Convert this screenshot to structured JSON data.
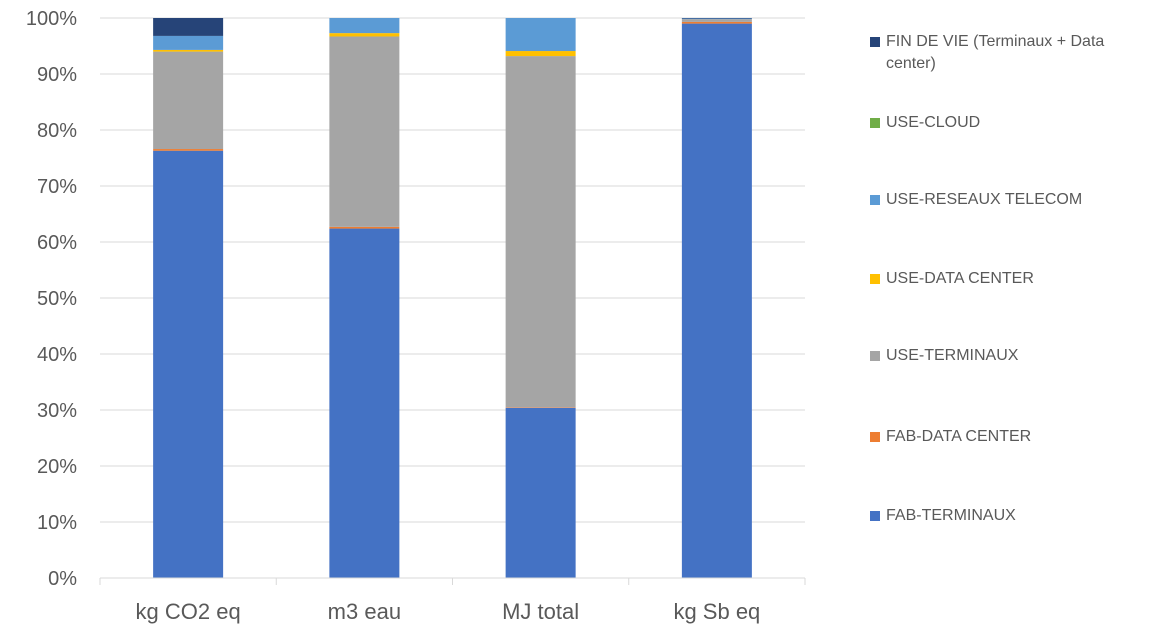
{
  "chart_data": {
    "type": "bar",
    "stacked": "percent",
    "categories": [
      "kg CO2 eq",
      "m3 eau",
      "MJ total",
      "kg Sb eq"
    ],
    "y_ticks": [
      "0%",
      "10%",
      "20%",
      "30%",
      "40%",
      "50%",
      "60%",
      "70%",
      "80%",
      "90%",
      "100%"
    ],
    "ylim": [
      0,
      100
    ],
    "grid": true,
    "legend_position": "right",
    "series": [
      {
        "name": "FAB-TERMINAUX",
        "color": "#4472C4",
        "values": [
          76.3,
          62.4,
          30.4,
          99.0
        ]
      },
      {
        "name": "FAB-DATA CENTER",
        "color": "#ED7D31",
        "values": [
          0.3,
          0.3,
          0.1,
          0.3
        ]
      },
      {
        "name": "USE-TERMINAUX",
        "color": "#A5A5A5",
        "values": [
          17.4,
          34.0,
          62.7,
          0.5
        ]
      },
      {
        "name": "USE-DATA CENTER",
        "color": "#FFC000",
        "values": [
          0.3,
          0.6,
          0.9,
          0.0
        ]
      },
      {
        "name": "USE-RESEAUX TELECOM",
        "color": "#5B9BD5",
        "values": [
          2.5,
          2.7,
          5.9,
          0.1
        ]
      },
      {
        "name": "USE-CLOUD",
        "color": "#70AD47",
        "values": [
          0.0,
          0.0,
          0.0,
          0.0
        ]
      },
      {
        "name": "FIN DE VIE (Terminaux + Data center)",
        "color": "#264478",
        "values": [
          3.2,
          0.0,
          0.0,
          0.1
        ]
      }
    ]
  },
  "legend": {
    "items": [
      {
        "label": "FIN DE VIE (Terminaux + Data center)",
        "color": "#264478"
      },
      {
        "label": "USE-CLOUD",
        "color": "#70AD47"
      },
      {
        "label": "USE-RESEAUX TELECOM",
        "color": "#5B9BD5"
      },
      {
        "label": "USE-DATA CENTER",
        "color": "#FFC000"
      },
      {
        "label": "USE-TERMINAUX",
        "color": "#A5A5A5"
      },
      {
        "label": "FAB-DATA CENTER",
        "color": "#ED7D31"
      },
      {
        "label": "FAB-TERMINAUX",
        "color": "#4472C4"
      }
    ]
  }
}
